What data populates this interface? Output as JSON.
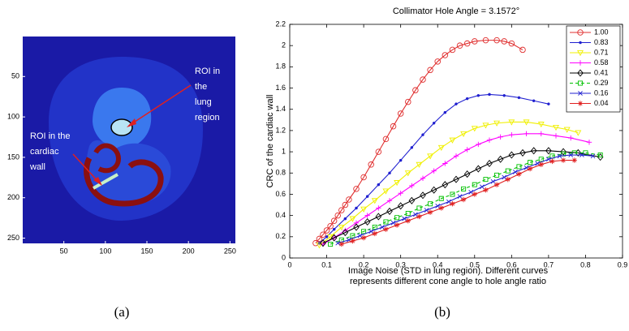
{
  "chart_data": [
    {
      "type": "image",
      "caption": "(a)",
      "xlim": [
        0.5,
        256.5
      ],
      "ylim": [
        256.5,
        0.5
      ],
      "xticks": [
        50,
        100,
        150,
        200,
        250
      ],
      "yticks": [
        50,
        100,
        150,
        200,
        250
      ],
      "annotations": [
        {
          "text": [
            "ROI in",
            "the",
            "lung",
            "region"
          ]
        },
        {
          "text": [
            "ROI in the",
            "cardiac",
            "wall"
          ]
        }
      ]
    },
    {
      "type": "line",
      "caption": "(b)",
      "title": "Collimator Hole Angle = 3.1572°",
      "xlabel": [
        "Image Noise (STD in lung region). Different curves",
        "represents different cone angle to hole angle ratio"
      ],
      "ylabel": "CRC of the cardiac wall",
      "xlim": [
        0,
        0.9
      ],
      "ylim": [
        0,
        2.2
      ],
      "xticks": [
        0,
        0.1,
        0.2,
        0.3,
        0.4,
        0.5,
        0.6,
        0.7,
        0.8,
        0.9
      ],
      "yticks": [
        0,
        0.2,
        0.4,
        0.6,
        0.8,
        1,
        1.2,
        1.4,
        1.6,
        1.8,
        2,
        2.2
      ],
      "legend": "upper right",
      "series": [
        {
          "name": "1.00",
          "color": "#e03030",
          "marker": "circle",
          "linestyle": "solid",
          "x": [
            0.07,
            0.08,
            0.09,
            0.1,
            0.11,
            0.12,
            0.13,
            0.14,
            0.15,
            0.16,
            0.18,
            0.2,
            0.22,
            0.24,
            0.26,
            0.28,
            0.3,
            0.32,
            0.34,
            0.36,
            0.38,
            0.4,
            0.42,
            0.44,
            0.46,
            0.48,
            0.5,
            0.53,
            0.56,
            0.58,
            0.6,
            0.63
          ],
          "values": [
            0.14,
            0.18,
            0.22,
            0.26,
            0.3,
            0.35,
            0.4,
            0.45,
            0.5,
            0.55,
            0.65,
            0.76,
            0.88,
            1.0,
            1.12,
            1.24,
            1.36,
            1.47,
            1.58,
            1.68,
            1.77,
            1.85,
            1.91,
            1.96,
            2.0,
            2.02,
            2.04,
            2.05,
            2.05,
            2.04,
            2.02,
            1.96
          ]
        },
        {
          "name": "0.83",
          "color": "#2020d0",
          "marker": "point",
          "linestyle": "solid",
          "x": [
            0.08,
            0.1,
            0.12,
            0.15,
            0.18,
            0.21,
            0.24,
            0.27,
            0.3,
            0.33,
            0.36,
            0.39,
            0.42,
            0.45,
            0.48,
            0.51,
            0.54,
            0.58,
            0.62,
            0.66,
            0.7
          ],
          "values": [
            0.14,
            0.2,
            0.27,
            0.37,
            0.47,
            0.58,
            0.69,
            0.8,
            0.92,
            1.04,
            1.16,
            1.27,
            1.37,
            1.45,
            1.5,
            1.53,
            1.54,
            1.53,
            1.51,
            1.48,
            1.45
          ]
        },
        {
          "name": "0.71",
          "color": "#f0f000",
          "marker": "triangle-down",
          "linestyle": "solid",
          "x": [
            0.08,
            0.11,
            0.14,
            0.17,
            0.2,
            0.23,
            0.26,
            0.29,
            0.32,
            0.35,
            0.38,
            0.41,
            0.44,
            0.47,
            0.5,
            0.53,
            0.56,
            0.6,
            0.64,
            0.68,
            0.72,
            0.75,
            0.78
          ],
          "values": [
            0.12,
            0.2,
            0.29,
            0.37,
            0.46,
            0.54,
            0.63,
            0.71,
            0.8,
            0.88,
            0.96,
            1.04,
            1.11,
            1.17,
            1.22,
            1.25,
            1.27,
            1.28,
            1.28,
            1.26,
            1.23,
            1.21,
            1.18
          ]
        },
        {
          "name": "0.58",
          "color": "#ff00ff",
          "marker": "plus",
          "linestyle": "solid",
          "x": [
            0.09,
            0.12,
            0.15,
            0.18,
            0.21,
            0.24,
            0.27,
            0.3,
            0.33,
            0.36,
            0.39,
            0.42,
            0.45,
            0.48,
            0.51,
            0.54,
            0.57,
            0.6,
            0.64,
            0.68,
            0.72,
            0.76,
            0.81
          ],
          "values": [
            0.13,
            0.19,
            0.26,
            0.33,
            0.4,
            0.47,
            0.54,
            0.61,
            0.68,
            0.75,
            0.82,
            0.89,
            0.96,
            1.02,
            1.07,
            1.11,
            1.14,
            1.16,
            1.17,
            1.17,
            1.15,
            1.13,
            1.09
          ]
        },
        {
          "name": "0.41",
          "color": "#000000",
          "marker": "diamond",
          "linestyle": "solid",
          "x": [
            0.09,
            0.12,
            0.15,
            0.18,
            0.21,
            0.24,
            0.27,
            0.3,
            0.33,
            0.36,
            0.39,
            0.42,
            0.45,
            0.48,
            0.51,
            0.54,
            0.57,
            0.6,
            0.63,
            0.66,
            0.7,
            0.74,
            0.78,
            0.84
          ],
          "values": [
            0.14,
            0.19,
            0.24,
            0.29,
            0.34,
            0.39,
            0.44,
            0.49,
            0.54,
            0.59,
            0.64,
            0.69,
            0.74,
            0.79,
            0.84,
            0.89,
            0.93,
            0.97,
            0.99,
            1.01,
            1.01,
            1.0,
            0.99,
            0.95
          ]
        },
        {
          "name": "0.29",
          "color": "#00c000",
          "marker": "square",
          "linestyle": "dashed",
          "x": [
            0.11,
            0.14,
            0.17,
            0.2,
            0.23,
            0.26,
            0.29,
            0.32,
            0.35,
            0.38,
            0.41,
            0.44,
            0.47,
            0.5,
            0.53,
            0.56,
            0.59,
            0.62,
            0.65,
            0.68,
            0.71,
            0.74,
            0.77,
            0.8,
            0.84
          ],
          "values": [
            0.13,
            0.17,
            0.21,
            0.25,
            0.29,
            0.34,
            0.38,
            0.42,
            0.47,
            0.51,
            0.56,
            0.6,
            0.65,
            0.69,
            0.74,
            0.78,
            0.82,
            0.86,
            0.9,
            0.93,
            0.96,
            0.98,
            0.99,
            0.99,
            0.97
          ]
        },
        {
          "name": "0.16",
          "color": "#2020d0",
          "marker": "x",
          "linestyle": "solid",
          "x": [
            0.13,
            0.16,
            0.19,
            0.22,
            0.25,
            0.28,
            0.31,
            0.34,
            0.37,
            0.4,
            0.43,
            0.46,
            0.49,
            0.52,
            0.55,
            0.58,
            0.61,
            0.64,
            0.67,
            0.7,
            0.73,
            0.76,
            0.79,
            0.82
          ],
          "values": [
            0.14,
            0.17,
            0.21,
            0.25,
            0.29,
            0.33,
            0.37,
            0.41,
            0.45,
            0.49,
            0.53,
            0.58,
            0.62,
            0.67,
            0.72,
            0.76,
            0.81,
            0.85,
            0.89,
            0.93,
            0.96,
            0.97,
            0.97,
            0.96
          ]
        },
        {
          "name": "0.04",
          "color": "#e02020",
          "marker": "star",
          "linestyle": "solid",
          "x": [
            0.14,
            0.17,
            0.2,
            0.23,
            0.26,
            0.29,
            0.32,
            0.35,
            0.38,
            0.41,
            0.44,
            0.47,
            0.5,
            0.53,
            0.56,
            0.59,
            0.62,
            0.65,
            0.68,
            0.71,
            0.74,
            0.77
          ],
          "values": [
            0.13,
            0.16,
            0.19,
            0.23,
            0.27,
            0.31,
            0.35,
            0.39,
            0.43,
            0.47,
            0.51,
            0.55,
            0.6,
            0.64,
            0.69,
            0.74,
            0.79,
            0.84,
            0.88,
            0.91,
            0.92,
            0.92
          ]
        }
      ]
    }
  ]
}
